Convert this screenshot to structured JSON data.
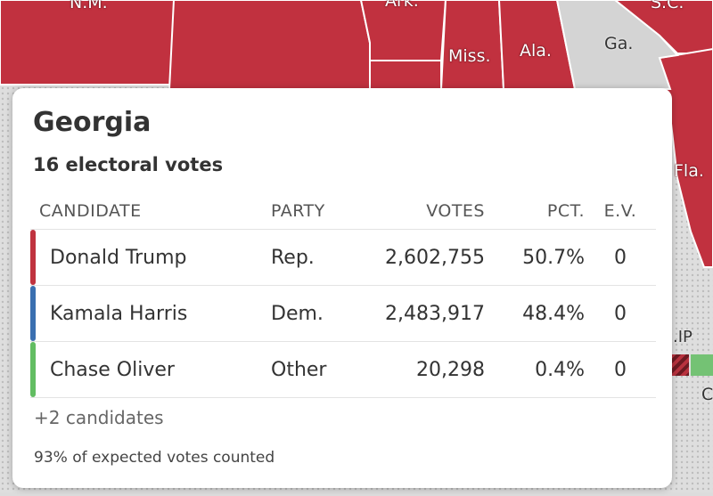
{
  "map": {
    "labels": [
      "N.M.",
      "Ark.",
      "S.C.",
      "Miss.",
      "Ala.",
      "Ga.",
      "Fla."
    ],
    "colors": {
      "republican": "#c1313f",
      "land_gray": "#d4d4d4",
      "state_border": "#ffffff"
    },
    "side_fragments": {
      "legend_fragment": ".IP",
      "bottom_fragment": "C"
    }
  },
  "card": {
    "state": "Georgia",
    "electoral_votes_text": "16 electoral votes",
    "columns": {
      "candidate": "CANDIDATE",
      "party": "PARTY",
      "votes": "VOTES",
      "pct": "PCT.",
      "ev": "E.V."
    },
    "rows": [
      {
        "color": "#c0333f",
        "name": "Donald Trump",
        "party": "Rep.",
        "votes": "2,602,755",
        "pct": "50.7%",
        "ev": "0"
      },
      {
        "color": "#3a6fb0",
        "name": "Kamala Harris",
        "party": "Dem.",
        "votes": "2,483,917",
        "pct": "48.4%",
        "ev": "0"
      },
      {
        "color": "#62bd62",
        "name": "Chase Oliver",
        "party": "Other",
        "votes": "20,298",
        "pct": "0.4%",
        "ev": "0"
      }
    ],
    "more_candidates": "+2 candidates",
    "reporting": "93% of expected votes counted"
  }
}
